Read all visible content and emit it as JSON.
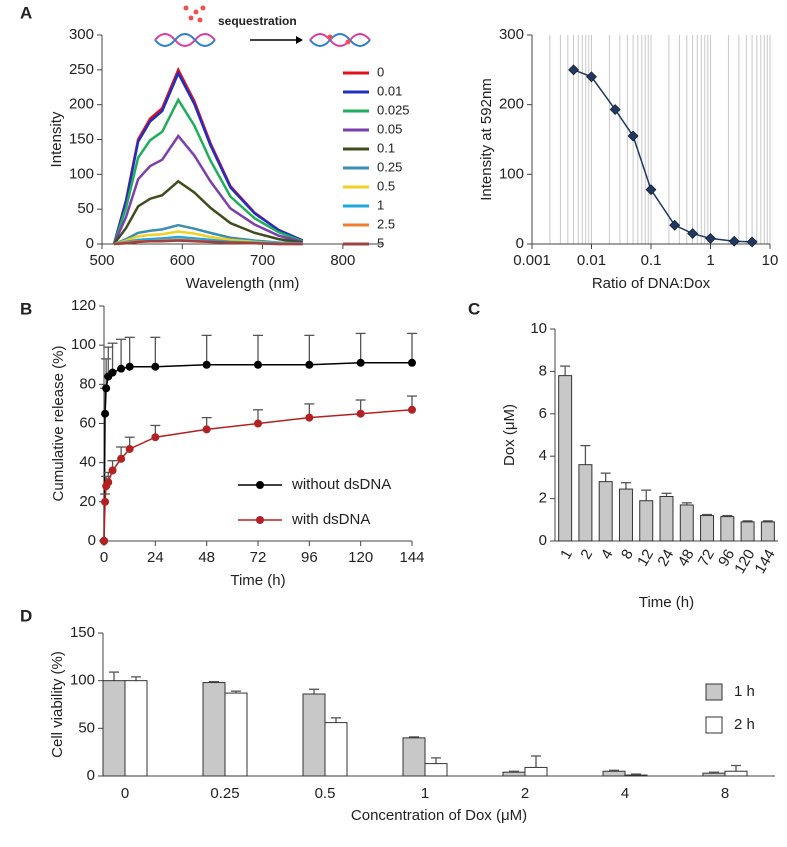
{
  "chart_data": [
    {
      "type": "line",
      "panel": "A",
      "annotation": "sequestration",
      "xlabel": "Wavelength (nm)",
      "ylabel": "Intensity",
      "x": [
        515,
        530,
        545,
        560,
        575,
        595,
        615,
        635,
        660,
        690,
        720,
        750
      ],
      "xlim": [
        500,
        850
      ],
      "xticks": [
        500,
        600,
        700,
        800
      ],
      "ylim": [
        0,
        300
      ],
      "yticks": [
        0,
        50,
        100,
        150,
        200,
        250,
        300
      ],
      "legend": "upper right",
      "series": [
        {
          "name": "0",
          "color": "#e3101c",
          "values": [
            0,
            63,
            150,
            180,
            195,
            250,
            205,
            145,
            83,
            45,
            20,
            5
          ]
        },
        {
          "name": "0.01",
          "color": "#1f2fbf",
          "values": [
            0,
            61,
            147,
            176,
            191,
            245,
            201,
            142,
            81,
            44,
            20,
            5
          ]
        },
        {
          "name": "0.025",
          "color": "#1fae5a",
          "values": [
            0,
            52,
            124,
            149,
            161,
            207,
            170,
            120,
            68,
            37,
            17,
            4
          ]
        },
        {
          "name": "0.05",
          "color": "#7b3fb0",
          "values": [
            0,
            39,
            93,
            112,
            121,
            155,
            127,
            90,
            51,
            28,
            12,
            3
          ]
        },
        {
          "name": "0.1",
          "color": "#3d4d1e",
          "values": [
            0,
            23,
            54,
            65,
            70,
            90,
            74,
            52,
            30,
            16,
            7,
            2
          ]
        },
        {
          "name": "0.25",
          "color": "#3b8fb0",
          "values": [
            0,
            7,
            16,
            19,
            21,
            27,
            22,
            16,
            9,
            5,
            2,
            1
          ]
        },
        {
          "name": "0.5",
          "color": "#f0d020",
          "values": [
            0,
            5,
            11,
            13,
            14,
            18,
            15,
            10,
            6,
            3,
            1,
            0
          ]
        },
        {
          "name": "1",
          "color": "#1ea8e0",
          "values": [
            0,
            3,
            6,
            7,
            8,
            10,
            8,
            6,
            3,
            2,
            1,
            0
          ]
        },
        {
          "name": "2.5",
          "color": "#f08030",
          "values": [
            0,
            2,
            4,
            4,
            5,
            6,
            5,
            3,
            2,
            1,
            0,
            0
          ]
        },
        {
          "name": "5",
          "color": "#a04040",
          "values": [
            0,
            1,
            3,
            4,
            4,
            5,
            4,
            3,
            2,
            1,
            0,
            0
          ]
        }
      ]
    },
    {
      "type": "line",
      "xlabel": "Ratio of DNA:Dox",
      "ylabel": "Intensity at 592nm",
      "x": [
        0.005,
        0.01,
        0.025,
        0.05,
        0.1,
        0.25,
        0.5,
        1,
        2.5,
        5
      ],
      "xscale": "log",
      "grid": "x",
      "marker": "diamond",
      "xlim": [
        0.001,
        10
      ],
      "xticks": [
        0.001,
        0.01,
        0.1,
        1,
        10
      ],
      "ylim": [
        0,
        300
      ],
      "yticks": [
        0,
        100,
        200,
        300
      ],
      "series": [
        {
          "color": "#1f3864",
          "values": [
            250,
            240,
            193,
            155,
            78,
            27,
            15,
            8,
            4,
            3
          ]
        }
      ]
    },
    {
      "type": "line",
      "panel": "B",
      "xlabel": "Time (h)",
      "ylabel": "Cumulative release (%)",
      "marker": "circle",
      "x": [
        0,
        0.5,
        1,
        2,
        4,
        8,
        12,
        24,
        48,
        72,
        96,
        120,
        144
      ],
      "xlim": [
        0,
        144
      ],
      "xticks": [
        0,
        24,
        48,
        72,
        96,
        120,
        144
      ],
      "ylim": [
        0,
        120
      ],
      "yticks": [
        0,
        20,
        40,
        60,
        80,
        100,
        120
      ],
      "legend": "lower right",
      "series": [
        {
          "name": "without dsDNA",
          "color": "#000000",
          "values": [
            0,
            65,
            78,
            84,
            86,
            88,
            89,
            89,
            90,
            90,
            90,
            91,
            91
          ],
          "errors": [
            0,
            13,
            15,
            15,
            15,
            15,
            15,
            15,
            15,
            15,
            15,
            15,
            15
          ]
        },
        {
          "name": "with dsDNA",
          "color": "#b22222",
          "values": [
            0,
            20,
            28,
            30,
            36,
            42,
            47,
            53,
            57,
            60,
            63,
            65,
            67
          ],
          "errors": [
            0,
            4,
            5,
            5,
            5,
            6,
            6,
            6,
            6,
            7,
            7,
            7,
            7
          ]
        }
      ]
    },
    {
      "type": "bar",
      "panel": "C",
      "xlabel": "Time (h)",
      "ylabel": "Dox (μM)",
      "categories": [
        "1",
        "2",
        "4",
        "8",
        "12",
        "24",
        "48",
        "72",
        "96",
        "120",
        "144"
      ],
      "values": [
        7.8,
        3.6,
        2.8,
        2.45,
        1.9,
        2.1,
        1.7,
        1.2,
        1.15,
        0.9,
        0.9
      ],
      "errors": [
        0.45,
        0.9,
        0.4,
        0.3,
        0.5,
        0.15,
        0.1,
        0.05,
        0.05,
        0.05,
        0.05
      ],
      "color": "#c8c8c8",
      "ylim": [
        0,
        10
      ],
      "yticks": [
        0,
        2,
        4,
        6,
        8,
        10
      ]
    },
    {
      "type": "bar",
      "panel": "D",
      "xlabel": "Concentration of Dox (μM)",
      "ylabel": "Cell viability (%)",
      "categories": [
        "0",
        "0.25",
        "0.5",
        "1",
        "2",
        "4",
        "8"
      ],
      "ylim": [
        0,
        150
      ],
      "yticks": [
        0,
        50,
        100,
        150
      ],
      "legend": "right",
      "series": [
        {
          "name": "1 h",
          "color": "#c8c8c8",
          "values": [
            100,
            98,
            86,
            40,
            4,
            5,
            3
          ],
          "errors": [
            9,
            1,
            5,
            1,
            1,
            1,
            1
          ]
        },
        {
          "name": "2 h",
          "color": "#ffffff",
          "values": [
            100,
            87,
            56,
            13,
            9,
            1,
            5
          ],
          "errors": [
            4,
            2,
            5,
            6,
            12,
            1,
            6
          ]
        }
      ]
    }
  ]
}
